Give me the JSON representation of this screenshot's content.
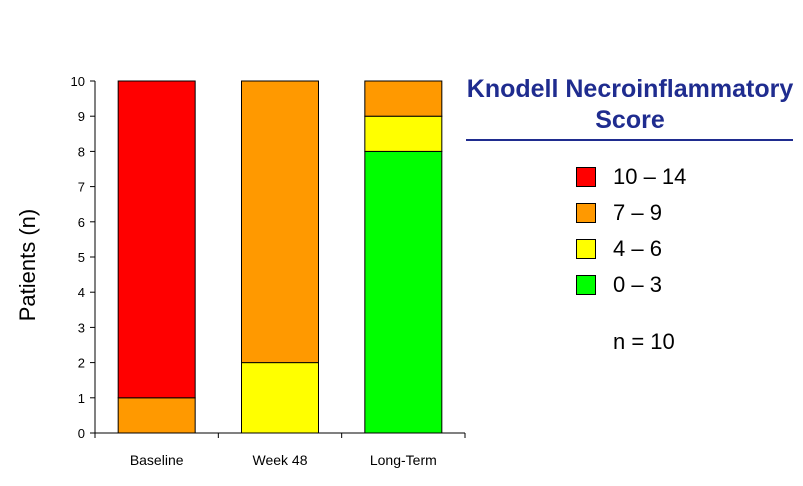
{
  "chart_data": {
    "type": "bar",
    "stacked": true,
    "categories": [
      "Baseline",
      "Week 48",
      "Long-Term"
    ],
    "ylabel": "Patients (n)",
    "xlabel": "",
    "ylim": [
      0,
      10
    ],
    "yticks": [
      0,
      1,
      2,
      3,
      4,
      5,
      6,
      7,
      8,
      9,
      10
    ],
    "grid": false,
    "series": [
      {
        "name": "0 – 3",
        "color": "#00ff00",
        "values": [
          0,
          0,
          8
        ]
      },
      {
        "name": "4 – 6",
        "color": "#ffff00",
        "values": [
          0,
          2,
          1
        ]
      },
      {
        "name": "7 – 9",
        "color": "#ff9900",
        "values": [
          1,
          8,
          1
        ]
      },
      {
        "name": "10 – 14",
        "color": "#ff0000",
        "values": [
          9,
          0,
          0
        ]
      }
    ],
    "legend": {
      "title": "Knodell Necroinflammatory Score",
      "title_color": "#1f2c8f",
      "placement": "right",
      "order": [
        "10 – 14",
        "7 – 9",
        "4 – 6",
        "0 – 3"
      ]
    },
    "annotation": "n = 10"
  }
}
